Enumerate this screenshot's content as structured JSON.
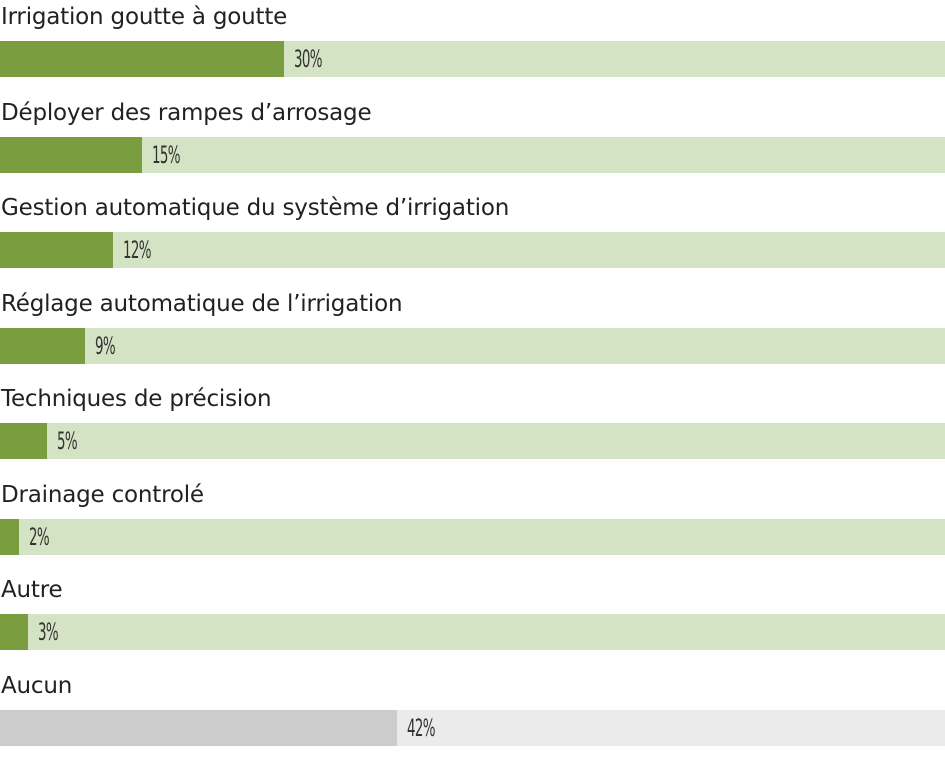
{
  "chart_data": {
    "type": "bar",
    "orientation": "horizontal",
    "categories": [
      "Irrigation goutte à goutte",
      "Déployer des rampes d’arrosage",
      "Gestion automatique du système d’irrigation",
      "Réglage automatique de l’irrigation",
      "Techniques de précision",
      "Drainage controlé",
      "Autre",
      "Aucun"
    ],
    "values": [
      30,
      15,
      12,
      9,
      5,
      2,
      3,
      42
    ],
    "value_labels": [
      "30%",
      "15%",
      "12%",
      "9%",
      "5%",
      "2%",
      "3%",
      "42%"
    ],
    "unit": "%",
    "xlim": [
      0,
      100
    ],
    "title": "",
    "xlabel": "",
    "ylabel": "",
    "grid": false,
    "legend": "none",
    "colors": {
      "fill": "#7a9e3f",
      "track": "#d5e3c5",
      "fill_none": "#cccccc",
      "track_none": "#ebebeb",
      "label_text": "#222222",
      "value_text": "#333333"
    }
  }
}
